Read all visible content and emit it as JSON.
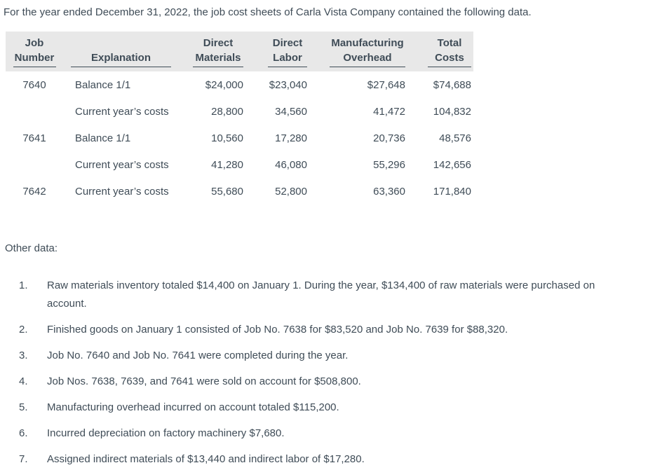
{
  "intro": "For the year ended December 31, 2022, the job cost sheets of Carla Vista Company contained the following data.",
  "colors": {
    "text": "#3f4c57",
    "header_band": "#e8e8e8"
  },
  "table": {
    "headers": [
      {
        "line1": "Job",
        "line2": "Number"
      },
      {
        "line1": "",
        "line2": "Explanation"
      },
      {
        "line1": "Direct",
        "line2": "Materials"
      },
      {
        "line1": "Direct",
        "line2": "Labor"
      },
      {
        "line1": "Manufacturing",
        "line2": "Overhead"
      },
      {
        "line1": "Total",
        "line2": "Costs"
      }
    ],
    "rows": [
      {
        "job": "7640",
        "explanation": "Balance 1/1",
        "direct_materials": "$24,000",
        "direct_labor": "$23,040",
        "manufacturing_overhead": "$27,648",
        "total_costs": "$74,688"
      },
      {
        "job": "",
        "explanation": "Current year’s costs",
        "direct_materials": "28,800",
        "direct_labor": "34,560",
        "manufacturing_overhead": "41,472",
        "total_costs": "104,832"
      },
      {
        "job": "7641",
        "explanation": "Balance 1/1",
        "direct_materials": "10,560",
        "direct_labor": "17,280",
        "manufacturing_overhead": "20,736",
        "total_costs": "48,576"
      },
      {
        "job": "",
        "explanation": "Current year’s costs",
        "direct_materials": "41,280",
        "direct_labor": "46,080",
        "manufacturing_overhead": "55,296",
        "total_costs": "142,656"
      },
      {
        "job": "7642",
        "explanation": "Current year’s costs",
        "direct_materials": "55,680",
        "direct_labor": "52,800",
        "manufacturing_overhead": "63,360",
        "total_costs": "171,840"
      }
    ]
  },
  "other_data": {
    "label": "Other data:",
    "items": [
      {
        "num": "1.",
        "text": "Raw materials inventory totaled $14,400 on January 1. During the year, $134,400 of raw materials were purchased on account."
      },
      {
        "num": "2.",
        "text": "Finished goods on January 1 consisted of Job No. 7638 for $83,520 and Job No. 7639 for $88,320."
      },
      {
        "num": "3.",
        "text": "Job No. 7640 and Job No. 7641 were completed during the year."
      },
      {
        "num": "4.",
        "text": "Job Nos. 7638, 7639, and 7641 were sold on account for $508,800."
      },
      {
        "num": "5.",
        "text": "Manufacturing overhead incurred on account totaled $115,200."
      },
      {
        "num": "6.",
        "text": "Incurred depreciation on factory machinery $7,680."
      },
      {
        "num": "7.",
        "text": "Assigned indirect materials of $13,440 and indirect labor of $17,280."
      }
    ]
  }
}
